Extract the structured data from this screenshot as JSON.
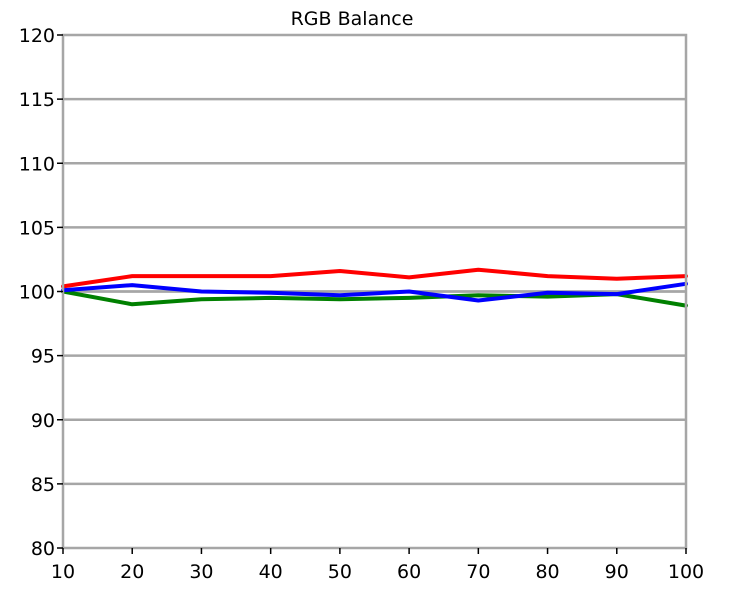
{
  "chart_data": {
    "type": "line",
    "title": "RGB Balance",
    "xlabel": "",
    "ylabel": "",
    "x": [
      10,
      20,
      30,
      40,
      50,
      60,
      70,
      80,
      90,
      100
    ],
    "xlim": [
      10,
      100
    ],
    "ylim": [
      80,
      120
    ],
    "x_ticks": [
      "10",
      "20",
      "30",
      "40",
      "50",
      "60",
      "70",
      "80",
      "90",
      "100"
    ],
    "y_ticks": [
      "80",
      "85",
      "90",
      "95",
      "100",
      "105",
      "110",
      "115",
      "120"
    ],
    "grid": "horizontal",
    "legend": "none",
    "colors": {
      "frame": "#a6a6a6",
      "grid": "#a6a6a6",
      "reference": "#a6a6a6"
    },
    "reference_line": {
      "y": 100,
      "color": "#a6a6a6"
    },
    "series": [
      {
        "color": "#ff0000",
        "values": [
          100.4,
          101.2,
          101.2,
          101.2,
          101.6,
          101.1,
          101.7,
          101.2,
          101.0,
          101.2
        ]
      },
      {
        "color": "#008000",
        "values": [
          100.0,
          99.0,
          99.4,
          99.5,
          99.4,
          99.5,
          99.7,
          99.6,
          99.8,
          98.9
        ]
      },
      {
        "color": "#0000ff",
        "values": [
          100.1,
          100.5,
          100.0,
          99.9,
          99.7,
          100.0,
          99.3,
          99.9,
          99.8,
          100.6
        ]
      }
    ]
  }
}
